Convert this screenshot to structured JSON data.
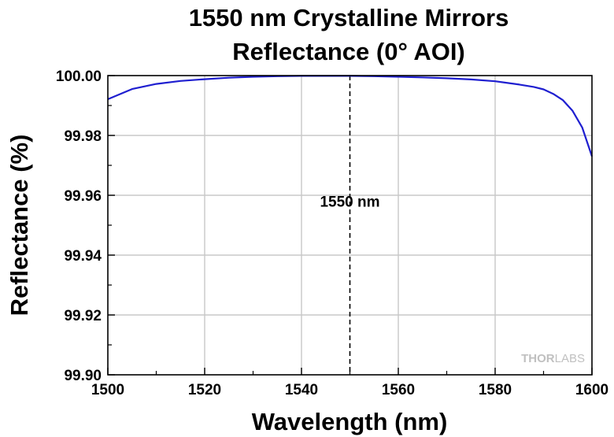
{
  "chart_data": {
    "type": "line",
    "title_line1": "1550 nm Crystalline Mirrors",
    "title_line2": "Reflectance (0° AOI)",
    "xlabel": "Wavelength (nm)",
    "ylabel": "Reflectance (%)",
    "xlim": [
      1500,
      1600
    ],
    "ylim": [
      99.9,
      100.0
    ],
    "x_ticks": [
      "1500",
      "1520",
      "1540",
      "1560",
      "1580",
      "1600"
    ],
    "y_ticks": [
      "100.00",
      "99.98",
      "99.96",
      "99.94",
      "99.92",
      "99.90"
    ],
    "grid": true,
    "series": [
      {
        "color": "#1f1fd0",
        "x": [
          1500,
          1505,
          1510,
          1515,
          1520,
          1525,
          1530,
          1535,
          1540,
          1545,
          1550,
          1555,
          1560,
          1565,
          1570,
          1575,
          1580,
          1585,
          1588,
          1590,
          1592,
          1594,
          1596,
          1598,
          1600
        ],
        "y": [
          99.9921,
          99.9955,
          99.9972,
          99.9982,
          99.9988,
          99.9993,
          99.9996,
          99.9998,
          99.9999,
          99.9999,
          99.9999,
          99.9998,
          99.9996,
          99.9994,
          99.9991,
          99.9987,
          99.9981,
          99.997,
          99.9962,
          99.9954,
          99.9939,
          99.9918,
          99.9882,
          99.9826,
          99.973
        ]
      }
    ],
    "annotations": [
      {
        "type": "vline",
        "x": 1550,
        "style": "dashed",
        "label": "1550 nm",
        "label_y": 99.958
      }
    ],
    "watermark": {
      "bold": "THOR",
      "light": "LABS"
    }
  }
}
